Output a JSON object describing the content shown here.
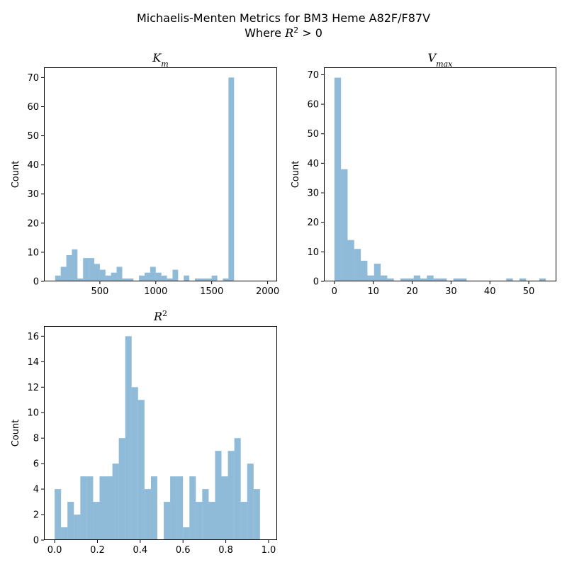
{
  "figure": {
    "title_line1": "Michaelis-Menten Metrics for BM3 Heme A82F/F87V",
    "title_line2_prefix": "Where ",
    "title_line2_var": "R",
    "title_line2_sup": "2",
    "title_line2_suffix": " > 0",
    "bar_color": "#1f77b4"
  },
  "chart_data": [
    {
      "type": "bar",
      "title_base": "K",
      "title_sub": "m",
      "title_sup": "",
      "ylabel": "Count",
      "xlim": [
        0,
        2085
      ],
      "ylim": [
        0,
        73.5
      ],
      "xticks": [
        500,
        1000,
        1500,
        2000
      ],
      "yticks": [
        0,
        10,
        20,
        30,
        40,
        50,
        60,
        70
      ],
      "bin_start": 100,
      "bin_width": 50,
      "values": [
        2,
        5,
        9,
        11,
        1,
        8,
        8,
        6,
        4,
        2,
        3,
        5,
        1,
        1,
        0,
        2,
        3,
        5,
        3,
        2,
        1,
        4,
        0,
        2,
        0,
        1,
        1,
        1,
        2,
        0,
        1,
        70
      ]
    },
    {
      "type": "bar",
      "title_base": "V",
      "title_sub": "max",
      "title_sup": "",
      "ylabel": "Count",
      "xlim": [
        -2.7,
        57.1
      ],
      "ylim": [
        0,
        72.5
      ],
      "xticks": [
        0,
        10,
        20,
        30,
        40,
        50
      ],
      "yticks": [
        0,
        10,
        20,
        30,
        40,
        50,
        60,
        70
      ],
      "bin_start": 0,
      "bin_width": 1.7,
      "values": [
        69,
        38,
        14,
        11,
        7,
        2,
        6,
        2,
        1,
        0,
        1,
        1,
        2,
        1,
        2,
        1,
        1,
        0,
        1,
        1,
        0,
        0,
        0,
        0,
        0,
        0,
        1,
        0,
        1,
        0,
        0,
        1
      ]
    },
    {
      "type": "bar",
      "title_base": "R",
      "title_sub": "",
      "title_sup": "2",
      "ylabel": "Count",
      "xlim": [
        -0.05,
        1.04
      ],
      "ylim": [
        0,
        16.8
      ],
      "xticks": [
        0.0,
        0.2,
        0.4,
        0.6,
        0.8,
        1.0
      ],
      "yticks": [
        0,
        2,
        4,
        6,
        8,
        10,
        12,
        14,
        16
      ],
      "bin_start": 0,
      "bin_width": 0.03,
      "values": [
        4,
        1,
        3,
        2,
        5,
        5,
        3,
        5,
        5,
        6,
        8,
        16,
        12,
        11,
        4,
        5,
        0,
        3,
        5,
        5,
        1,
        5,
        3,
        4,
        3,
        7,
        5,
        7,
        8,
        3,
        6,
        4
      ]
    }
  ]
}
